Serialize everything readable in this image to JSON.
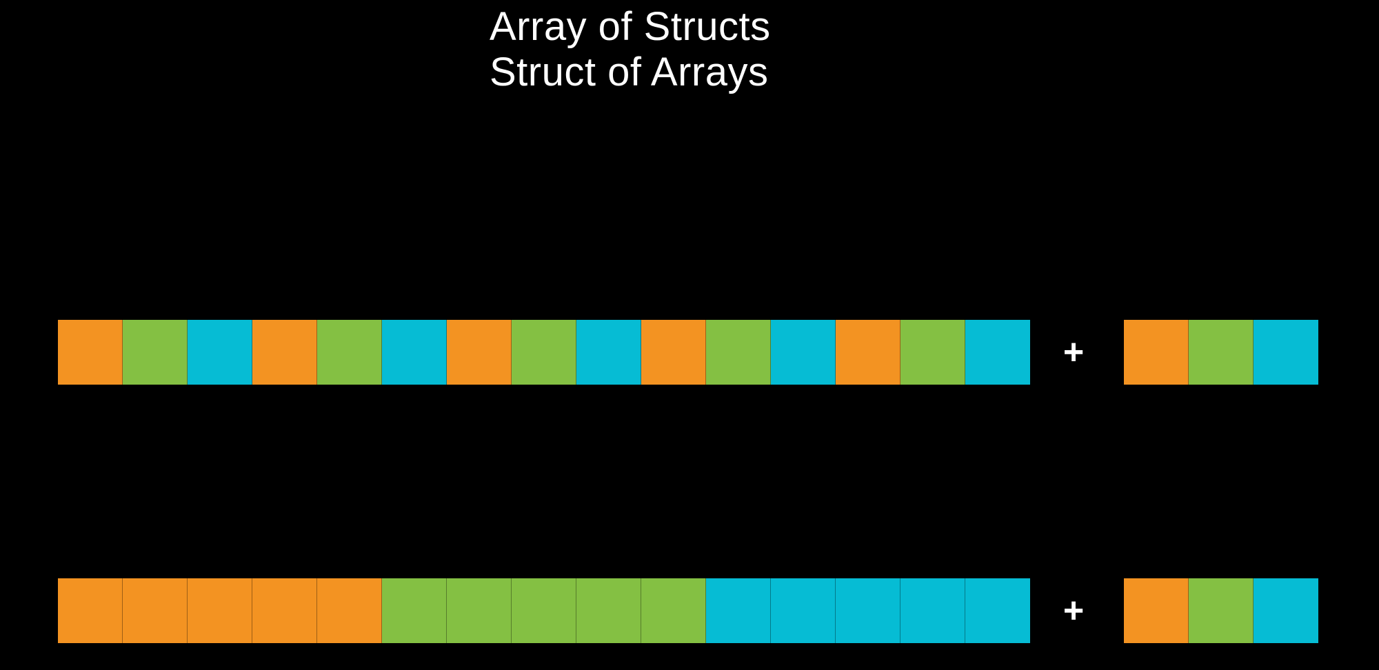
{
  "titles": [
    "Array of Structs",
    "Struct of Arrays"
  ],
  "colors": {
    "orange": "#f39322",
    "green": "#84c043",
    "cyan": "#06bcd4",
    "background": "#000000"
  },
  "rows": [
    {
      "id": "array-of-structs",
      "main": [
        "orange",
        "green",
        "cyan",
        "orange",
        "green",
        "cyan",
        "orange",
        "green",
        "cyan",
        "orange",
        "green",
        "cyan",
        "orange",
        "green",
        "cyan"
      ],
      "operator": "+",
      "extra": [
        "orange",
        "green",
        "cyan"
      ]
    },
    {
      "id": "struct-of-arrays",
      "main": [
        "orange",
        "orange",
        "orange",
        "orange",
        "orange",
        "green",
        "green",
        "green",
        "green",
        "green",
        "cyan",
        "cyan",
        "cyan",
        "cyan",
        "cyan"
      ],
      "operator": "+",
      "extra": [
        "orange",
        "green",
        "cyan"
      ]
    }
  ]
}
